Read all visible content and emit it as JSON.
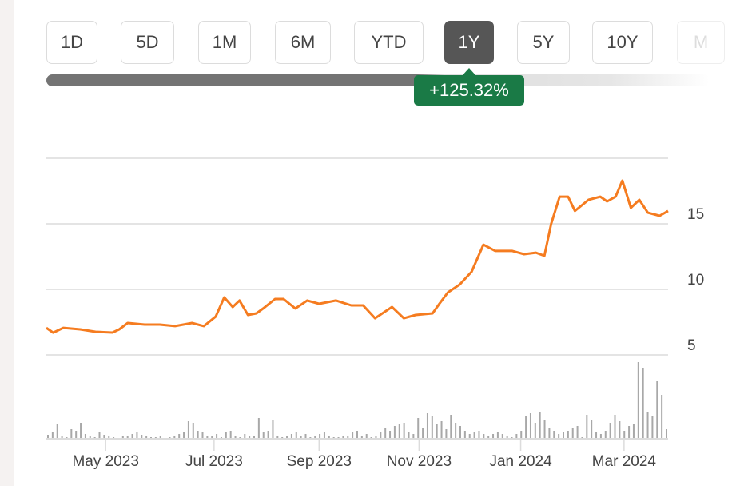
{
  "range_buttons": [
    {
      "label": "1D"
    },
    {
      "label": "5D"
    },
    {
      "label": "1M"
    },
    {
      "label": "6M"
    },
    {
      "label": "YTD"
    },
    {
      "label": "1Y",
      "active": true
    },
    {
      "label": "5Y"
    },
    {
      "label": "10Y"
    },
    {
      "label": "M",
      "faded": true
    }
  ],
  "change_badge": "+125.32%",
  "colors": {
    "line": "#f57c20",
    "badge": "#1a7a46",
    "volume": "#a8a8a8"
  },
  "chart_data": {
    "type": "line",
    "title": "",
    "y_ticks": [
      {
        "value": 5,
        "label": "5"
      },
      {
        "value": 10,
        "label": "10"
      },
      {
        "value": 15,
        "label": "15"
      }
    ],
    "ylim": [
      5,
      20
    ],
    "x_unit": "days since 2023-03-27",
    "xlim": [
      0,
      367
    ],
    "x_ticks": [
      {
        "day": 35,
        "label": "May 2023"
      },
      {
        "day": 99,
        "label": "Jul 2023"
      },
      {
        "day": 161,
        "label": "Sep 2023"
      },
      {
        "day": 220,
        "label": "Nov 2023"
      },
      {
        "day": 280,
        "label": "Jan 2024"
      },
      {
        "day": 341,
        "label": "Mar 2024"
      }
    ],
    "price": [
      [
        0,
        7.07
      ],
      [
        4,
        6.7
      ],
      [
        10,
        7.07
      ],
      [
        20,
        6.95
      ],
      [
        29,
        6.77
      ],
      [
        39,
        6.71
      ],
      [
        43,
        6.95
      ],
      [
        48,
        7.44
      ],
      [
        58,
        7.32
      ],
      [
        67,
        7.32
      ],
      [
        76,
        7.2
      ],
      [
        86,
        7.44
      ],
      [
        93,
        7.2
      ],
      [
        100,
        7.93
      ],
      [
        105,
        9.39
      ],
      [
        110,
        8.66
      ],
      [
        114,
        9.15
      ],
      [
        119,
        8.05
      ],
      [
        124,
        8.17
      ],
      [
        128,
        8.54
      ],
      [
        135,
        9.27
      ],
      [
        140,
        9.27
      ],
      [
        147,
        8.54
      ],
      [
        154,
        9.15
      ],
      [
        161,
        8.9
      ],
      [
        171,
        9.15
      ],
      [
        180,
        8.78
      ],
      [
        187,
        8.78
      ],
      [
        194,
        7.8
      ],
      [
        204,
        8.66
      ],
      [
        211,
        7.8
      ],
      [
        218,
        8.05
      ],
      [
        228,
        8.17
      ],
      [
        232,
        8.9
      ],
      [
        237,
        9.76
      ],
      [
        244,
        10.37
      ],
      [
        251,
        11.34
      ],
      [
        258,
        13.41
      ],
      [
        265,
        12.93
      ],
      [
        275,
        12.93
      ],
      [
        282,
        12.68
      ],
      [
        289,
        12.8
      ],
      [
        294,
        12.56
      ],
      [
        298,
        15.0
      ],
      [
        303,
        17.07
      ],
      [
        308,
        17.07
      ],
      [
        312,
        15.98
      ],
      [
        320,
        16.83
      ],
      [
        327,
        17.07
      ],
      [
        331,
        16.71
      ],
      [
        336,
        17.07
      ],
      [
        340,
        18.29
      ],
      [
        345,
        16.22
      ],
      [
        350,
        16.83
      ],
      [
        355,
        15.85
      ],
      [
        362,
        15.61
      ],
      [
        367,
        15.98
      ]
    ],
    "volume_relative": [
      5,
      8,
      18,
      4,
      2,
      12,
      10,
      20,
      6,
      4,
      2,
      8,
      5,
      3,
      2,
      1,
      3,
      4,
      6,
      8,
      5,
      3,
      2,
      2,
      3,
      1,
      2,
      4,
      6,
      8,
      22,
      20,
      10,
      8,
      4,
      3,
      6,
      2,
      8,
      10,
      3,
      2,
      6,
      4,
      3,
      26,
      8,
      10,
      24,
      4,
      2,
      4,
      6,
      8,
      3,
      6,
      2,
      4,
      6,
      8,
      3,
      2,
      2,
      4,
      3,
      8,
      10,
      3,
      6,
      2,
      4,
      8,
      14,
      10,
      16,
      18,
      20,
      8,
      6,
      26,
      14,
      32,
      28,
      18,
      22,
      12,
      30,
      20,
      16,
      10,
      6,
      8,
      10,
      6,
      4,
      6,
      8,
      6,
      4,
      2,
      6,
      10,
      28,
      32,
      20,
      34,
      24,
      14,
      10,
      6,
      8,
      10,
      14,
      16,
      2,
      30,
      24,
      8,
      6,
      10,
      20,
      30,
      22,
      10,
      16,
      18,
      96,
      88,
      34,
      28,
      72,
      55,
      12
    ]
  }
}
